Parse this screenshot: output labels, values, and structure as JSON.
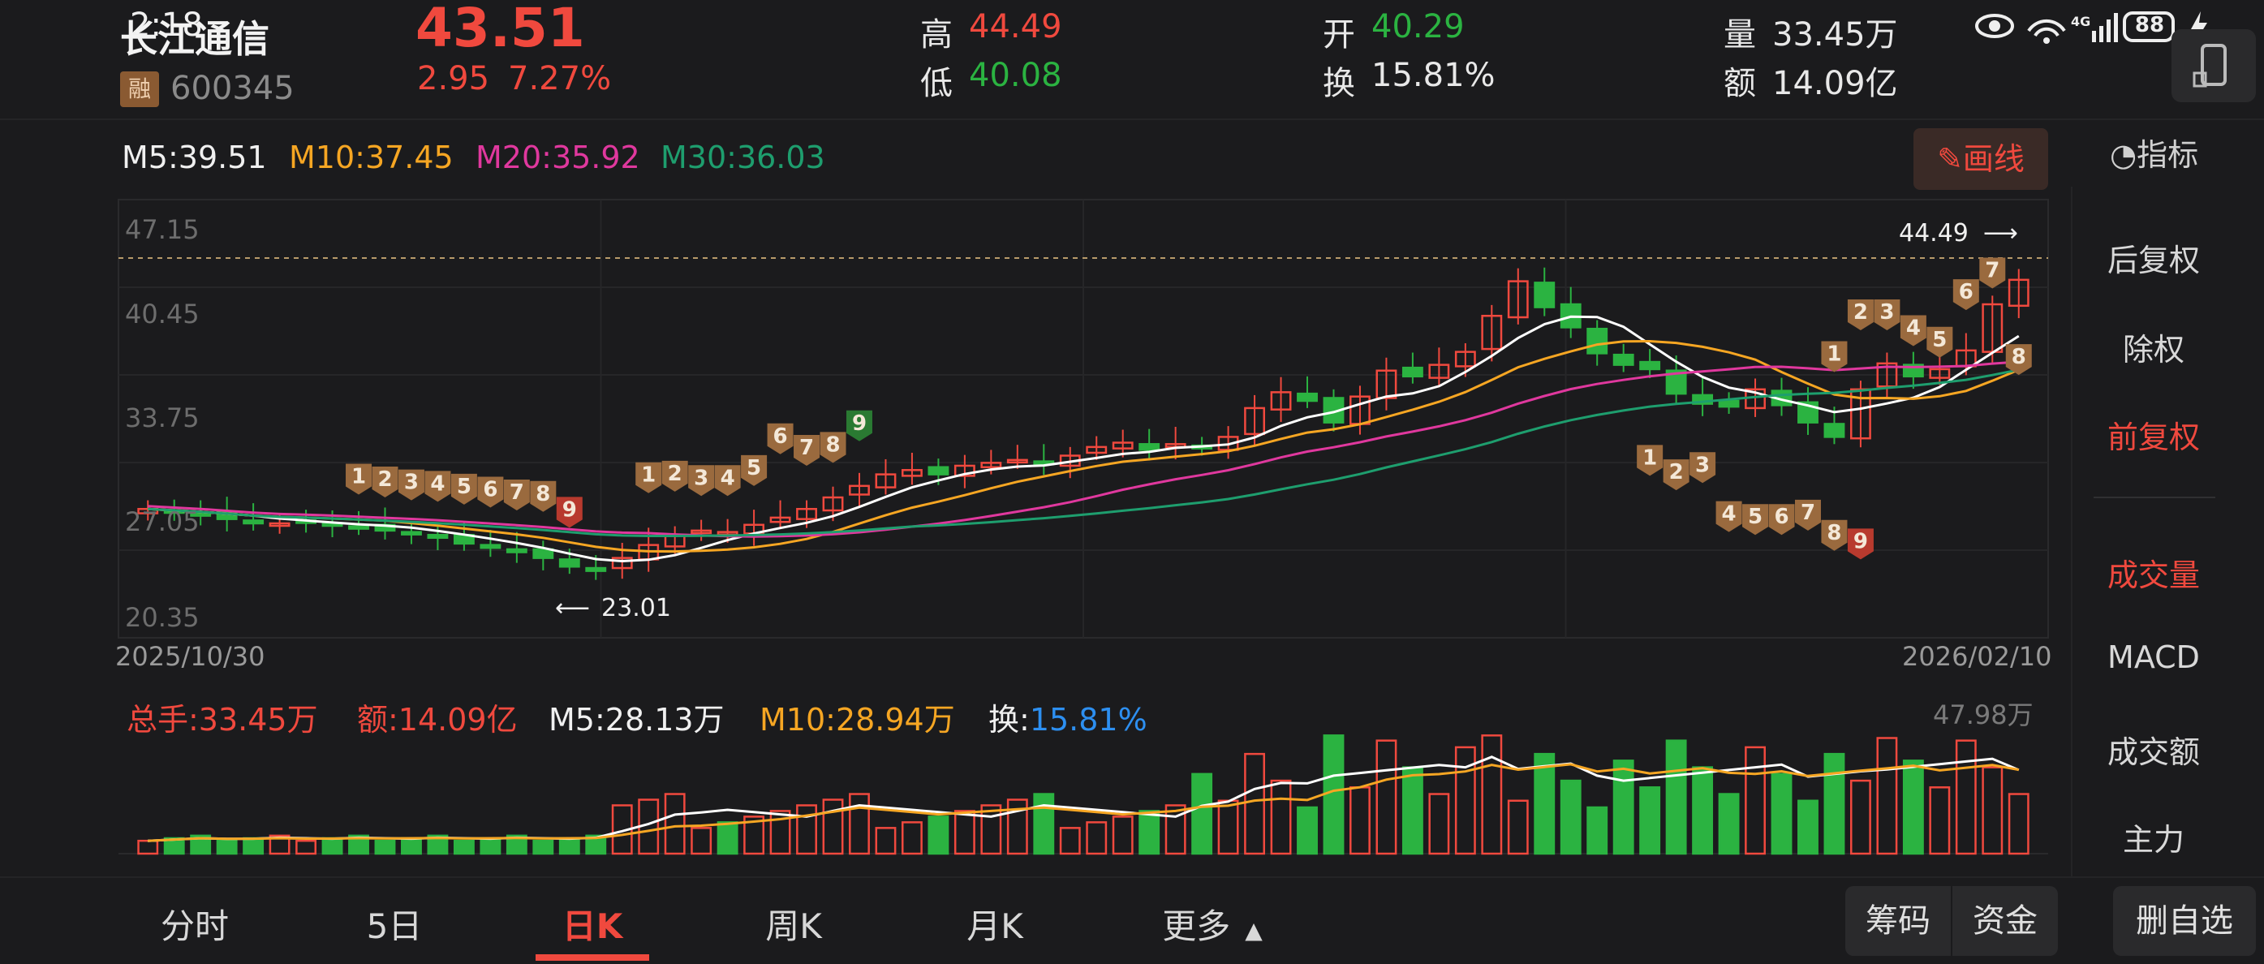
{
  "status_bar": {
    "time": "2:18",
    "battery": "88"
  },
  "stock": {
    "name": "长江通信",
    "badge": "融",
    "code": "600345",
    "price": "43.51",
    "change": "2.95",
    "change_pct": "7.27%"
  },
  "quote": {
    "high_label": "高",
    "high": "44.49",
    "low_label": "低",
    "low": "40.08",
    "open_label": "开",
    "open": "40.29",
    "turnover_label": "换",
    "turnover": "15.81%",
    "volume_label": "量",
    "volume": "33.45万",
    "amount_label": "额",
    "amount": "14.09亿"
  },
  "ma_legend": {
    "m5": "M5:39.51",
    "m10": "M10:37.45",
    "m20": "M20:35.92",
    "m30": "M30:36.03"
  },
  "draw_button": "画线",
  "indicator_button": "指标",
  "price_axis": [
    "47.15",
    "40.45",
    "33.75",
    "27.05",
    "20.35"
  ],
  "date_start": "2025/10/30",
  "date_end": "2026/02/10",
  "high_marker": "44.49",
  "low_marker": "23.01",
  "volume_legend": {
    "total": "总手:33.45万",
    "amount": "额:14.09亿",
    "m5": "M5:28.13万",
    "m10": "M10:28.94万",
    "turn_label": "换:",
    "turn_value": "15.81%"
  },
  "volume_max": "47.98万",
  "sidebar": {
    "items": [
      "后复权",
      "除权",
      "前复权",
      "成交量",
      "MACD",
      "成交额",
      "主力"
    ]
  },
  "tabs": [
    "分时",
    "5日",
    "日K",
    "周K",
    "月K",
    "更多"
  ],
  "bottom_buttons": [
    "筹码",
    "资金",
    "删自选"
  ],
  "colors": {
    "up": "#f0493e",
    "down": "#2bb341",
    "ma5": "#ffffff",
    "ma10": "#f6a623",
    "ma20": "#e0389e",
    "ma30": "#1e9e6e",
    "accent_turn": "#2d8ff0",
    "active_tab": "#f0493e"
  }
}
